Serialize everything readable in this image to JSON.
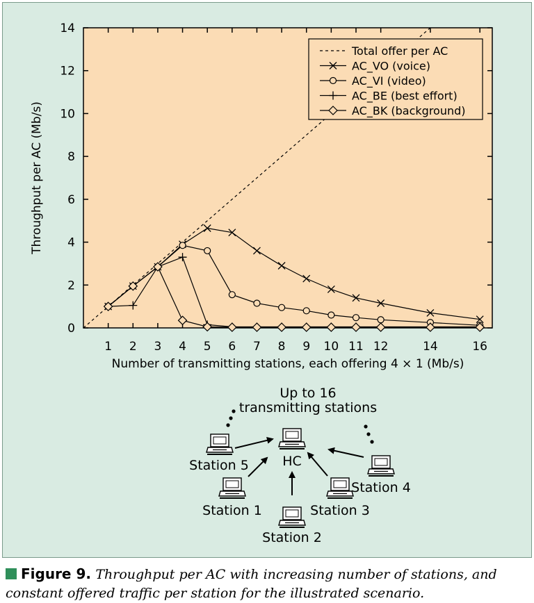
{
  "chart_data": {
    "type": "line",
    "xlabel": "Number of transmitting stations, each offering 4 × 1 (Mb/s)",
    "ylabel": "Throughput per AC (Mb/s)",
    "xlim": [
      0,
      16.5
    ],
    "ylim": [
      0,
      14
    ],
    "x_ticks": [
      1,
      2,
      3,
      4,
      5,
      6,
      7,
      8,
      9,
      10,
      11,
      12,
      14,
      16
    ],
    "y_ticks": [
      0,
      2,
      4,
      6,
      8,
      10,
      12,
      14
    ],
    "legend_position": "top-right",
    "series": [
      {
        "name": "Total offer per AC",
        "style": "dashed",
        "marker": "none",
        "x": [
          0,
          16
        ],
        "y": [
          0,
          16
        ]
      },
      {
        "name": "AC_VO (voice)",
        "style": "solid",
        "marker": "x",
        "x": [
          1,
          2,
          3,
          4,
          5,
          6,
          7,
          8,
          9,
          10,
          11,
          12,
          14,
          16
        ],
        "y": [
          1.0,
          1.95,
          2.85,
          3.9,
          4.65,
          4.45,
          3.6,
          2.9,
          2.3,
          1.8,
          1.4,
          1.15,
          0.7,
          0.4
        ]
      },
      {
        "name": "AC_VI (video)",
        "style": "solid",
        "marker": "circle",
        "x": [
          1,
          2,
          3,
          4,
          5,
          6,
          7,
          8,
          9,
          10,
          11,
          12,
          14,
          16
        ],
        "y": [
          1.0,
          1.95,
          2.85,
          3.85,
          3.6,
          1.55,
          1.15,
          0.95,
          0.8,
          0.6,
          0.48,
          0.38,
          0.25,
          0.12
        ]
      },
      {
        "name": "AC_BE (best effort)",
        "style": "solid",
        "marker": "plus",
        "x": [
          1,
          2,
          3,
          4,
          5,
          6,
          7,
          8,
          9,
          10,
          11,
          12,
          14,
          16
        ],
        "y": [
          1.0,
          1.05,
          2.85,
          3.3,
          0.15,
          0.05,
          0.05,
          0.05,
          0.05,
          0.05,
          0.05,
          0.05,
          0.05,
          0.05
        ]
      },
      {
        "name": "AC_BK (background)",
        "style": "solid",
        "marker": "diamond",
        "x": [
          1,
          2,
          3,
          4,
          5,
          6,
          7,
          8,
          9,
          10,
          11,
          12,
          14,
          16
        ],
        "y": [
          1.0,
          1.95,
          2.85,
          0.35,
          0.05,
          0.03,
          0.03,
          0.03,
          0.03,
          0.03,
          0.03,
          0.03,
          0.03,
          0.03
        ]
      }
    ]
  },
  "diagram": {
    "title_line1": "Up to 16",
    "title_line2": "transmitting stations",
    "hc_label": "HC",
    "station5": "Station 5",
    "station1": "Station 1",
    "station2": "Station 2",
    "station3": "Station 3",
    "station4": "Station 4"
  },
  "caption": {
    "label": "Figure 9.",
    "text": "Throughput per AC with increasing number of stations, and constant offered traffic per station for the illustrated scenario."
  },
  "colors": {
    "panel": "#d9ebe2",
    "plot_area": "#fbdcb5",
    "accent": "#2f8f5a"
  }
}
